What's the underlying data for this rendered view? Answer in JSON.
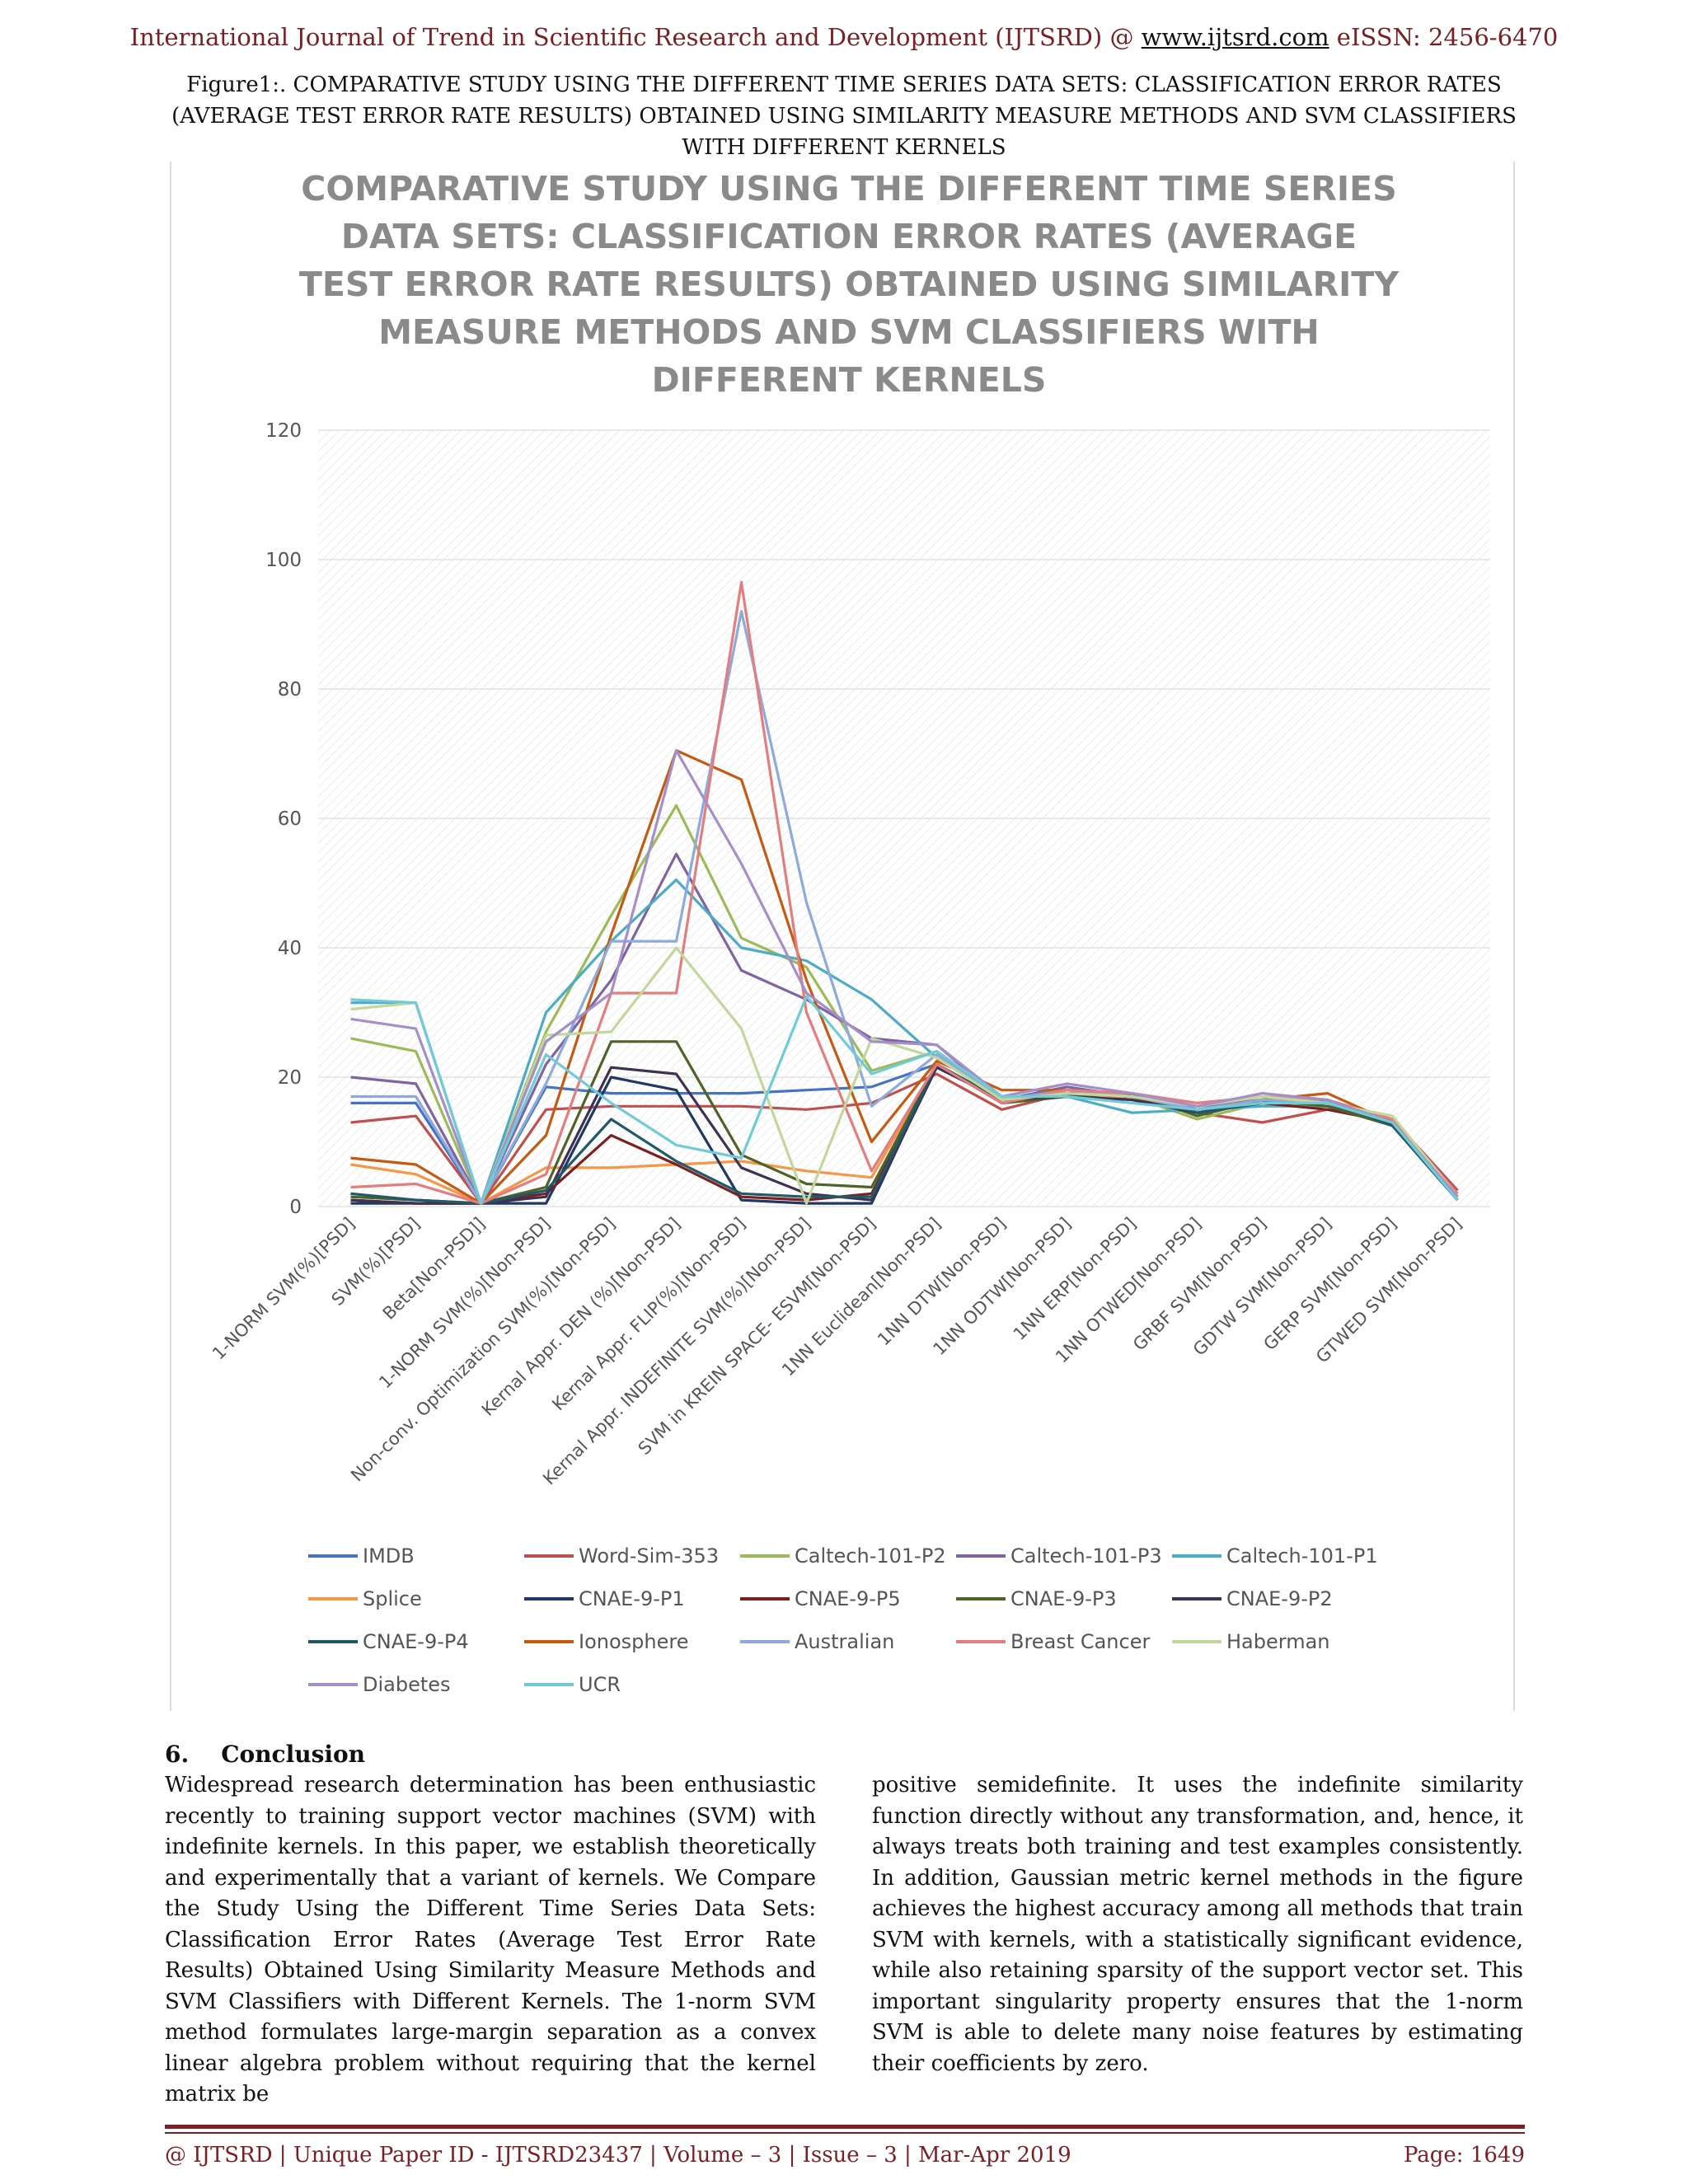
{
  "header": {
    "prefix": "International Journal of Trend in Scientific Research and Development (IJTSRD) @ ",
    "link": "www.ijtsrd.com",
    "suffix": " eISSN: 2456-6470"
  },
  "figure_caption": "Figure1:. COMPARATIVE STUDY USING THE DIFFERENT TIME SERIES DATA SETS: CLASSIFICATION ERROR RATES (AVERAGE TEST ERROR RATE RESULTS) OBTAINED USING SIMILARITY MEASURE METHODS AND SVM CLASSIFIERS WITH DIFFERENT KERNELS",
  "chart_data": {
    "type": "line",
    "title": "COMPARATIVE STUDY USING THE DIFFERENT TIME SERIES DATA SETS: CLASSIFICATION ERROR RATES (AVERAGE TEST ERROR RATE RESULTS) OBTAINED USING SIMILARITY MEASURE METHODS AND SVM CLASSIFIERS WITH DIFFERENT KERNELS",
    "ylim": [
      0,
      120
    ],
    "yticks": [
      0,
      20,
      40,
      60,
      80,
      100,
      120
    ],
    "grid": true,
    "legend_position": "bottom",
    "categories": [
      "1-NORM SVM(%)[PSD]",
      "SVM(%)[PSD]",
      "Beta[Non-PSD]]",
      "1-NORM SVM(%)[Non-PSD]",
      "Non-conv. Optimization SVM(%)[Non-PSD]",
      "Kernal Appr. DEN (%)[Non-PSD]",
      "Kernal Appr.  FLIP(%)[Non-PSD]",
      "Kernal Appr. INDEFINITE SVM(%)[Non-PSD]",
      "SVM in KREIN SPACE- ESVM[Non-PSD]",
      "1NN Euclidean[Non-PSD]",
      "1NN DTW[Non-PSD]",
      "1NN ODTW[Non-PSD]",
      "1NN ERP[Non-PSD]",
      "1NN OTWED[Non-PSD]",
      "GRBF SVM[Non-PSD]",
      "GDTW  SVM[Non-PSD]",
      "GERP  SVM[Non-PSD]",
      "GTWED SVM[Non-PSD]"
    ],
    "series": [
      {
        "name": "IMDB",
        "color": "#4472c4",
        "values": [
          16,
          16,
          0.5,
          18.5,
          17.5,
          17.5,
          17.5,
          18,
          18.5,
          22,
          16,
          17.5,
          17,
          15,
          16.5,
          15.5,
          13,
          1
        ]
      },
      {
        "name": "Word-Sim-353",
        "color": "#c0504d",
        "values": [
          13,
          14,
          0.5,
          15,
          15.5,
          15.5,
          15.5,
          15,
          16,
          20.5,
          15,
          17.5,
          16.5,
          14.5,
          13,
          15,
          13.5,
          2.5
        ]
      },
      {
        "name": "Caltech-101-P2",
        "color": "#9bbb59",
        "values": [
          26,
          24,
          0.5,
          27,
          45,
          62,
          41.5,
          37,
          21,
          24,
          16.5,
          17.5,
          17,
          13.5,
          16,
          15.5,
          13,
          1.5
        ]
      },
      {
        "name": "Caltech-101-P3",
        "color": "#8064a2",
        "values": [
          20,
          19,
          0.5,
          22,
          35,
          54.5,
          36.5,
          32,
          26,
          25,
          16.5,
          18.5,
          17,
          15.5,
          16.5,
          16,
          12.5,
          1.5
        ]
      },
      {
        "name": "Caltech-101-P1",
        "color": "#4bacc6",
        "values": [
          31.5,
          31.5,
          0.5,
          30,
          41,
          50.5,
          40,
          38,
          32,
          23,
          17,
          17,
          14.5,
          15,
          15.5,
          15.5,
          12.5,
          1
        ]
      },
      {
        "name": "Splice",
        "color": "#f79646",
        "values": [
          6.5,
          5,
          0.5,
          6,
          6,
          6.5,
          7,
          5.5,
          4.5,
          22,
          16,
          17,
          17,
          15,
          16.5,
          16,
          13,
          1.5
        ]
      },
      {
        "name": "CNAE-9-P1",
        "color": "#1f3864",
        "values": [
          0.5,
          0.5,
          0.5,
          0.5,
          20,
          18,
          1,
          0.5,
          0.5,
          22,
          16,
          17,
          17.5,
          15,
          16,
          16,
          12.5,
          1
        ]
      },
      {
        "name": "CNAE-9-P5",
        "color": "#7b1f1f",
        "values": [
          1,
          0.5,
          0.5,
          2,
          11,
          6.5,
          1.5,
          1,
          2,
          22,
          16,
          17.5,
          17,
          14.5,
          16,
          15,
          13,
          1.5
        ]
      },
      {
        "name": "CNAE-9-P3",
        "color": "#4f6228",
        "values": [
          1.5,
          1,
          0.5,
          3,
          25.5,
          25.5,
          8,
          3.5,
          3,
          22,
          16,
          17,
          17.5,
          14,
          16.5,
          15.5,
          12.5,
          1
        ]
      },
      {
        "name": "CNAE-9-P2",
        "color": "#3f3151",
        "values": [
          1,
          0.5,
          0.5,
          1.5,
          21.5,
          20.5,
          6,
          2,
          1,
          21.5,
          16.5,
          17,
          16.5,
          14.5,
          16,
          16,
          13,
          1
        ]
      },
      {
        "name": "CNAE-9-P4",
        "color": "#215967",
        "values": [
          2,
          1,
          0.5,
          2.5,
          13.5,
          7,
          2,
          1.5,
          1.5,
          22,
          16.5,
          17.5,
          17.5,
          14.5,
          16,
          16.5,
          12.5,
          1
        ]
      },
      {
        "name": "Ionosphere",
        "color": "#c55a11",
        "values": [
          7.5,
          6.5,
          0.5,
          11,
          42,
          70.5,
          66,
          35,
          10,
          22.5,
          18,
          18,
          17,
          15,
          16.5,
          17.5,
          13,
          2
        ]
      },
      {
        "name": "Australian",
        "color": "#8eaadb",
        "values": [
          17,
          17,
          0.5,
          19,
          41,
          41,
          92,
          47,
          15.5,
          23.5,
          16.5,
          18,
          17,
          15,
          16.5,
          16,
          13,
          1.5
        ]
      },
      {
        "name": "Breast Cancer",
        "color": "#e47d7d",
        "values": [
          3,
          3.5,
          0.5,
          5,
          33,
          33,
          96.5,
          30,
          5.5,
          22,
          16,
          18,
          17.5,
          16,
          17,
          16.5,
          13.5,
          2
        ]
      },
      {
        "name": "Haberman",
        "color": "#c3d69b",
        "values": [
          30.5,
          31.5,
          0.5,
          26.5,
          27,
          40,
          27.5,
          0.5,
          26,
          23,
          16.5,
          17.5,
          17,
          15.5,
          17,
          16,
          14,
          1.5
        ]
      },
      {
        "name": "Diabetes",
        "color": "#a48fc9",
        "values": [
          29,
          27.5,
          0.5,
          25.5,
          33,
          70.5,
          53,
          33,
          25.5,
          25,
          17,
          19,
          17.5,
          15.5,
          17.5,
          16.5,
          13,
          1.5
        ]
      },
      {
        "name": "UCR",
        "color": "#6fcbd8",
        "values": [
          32,
          31.5,
          0.5,
          23.5,
          16,
          9.5,
          7.5,
          32.5,
          20.5,
          24,
          17,
          17,
          16,
          15,
          16,
          16,
          13,
          1
        ]
      }
    ]
  },
  "section": {
    "number": "6.",
    "title": "Conclusion"
  },
  "paragraph_left": "Widespread research determination has been enthusiastic recently to training support vector machines (SVM) with indefinite kernels. In this paper, we establish theoretically and experimentally that a variant of kernels. We Compare the Study Using the Different Time Series Data Sets: Classification Error Rates (Average Test Error Rate Results) Obtained Using Similarity Measure Methods and SVM Classifiers with Different Kernels. The 1-norm SVM method formulates large-margin separation as a convex linear algebra problem without requiring that the kernel matrix be",
  "paragraph_right": "positive semidefinite. It uses the indefinite similarity function directly without any transformation, and, hence, it always treats both training and test examples consistently. In addition, Gaussian metric kernel methods in the figure achieves the highest accuracy among all methods that train SVM with kernels, with a statistically significant evidence, while also retaining sparsity of the support vector set. This important singularity property ensures that the 1-norm SVM is able to delete many noise features by estimating their coefficients by zero.",
  "footer": {
    "left": "@ IJTSRD | Unique Paper ID - IJTSRD23437  | Volume – 3 | Issue – 3 | Mar-Apr 2019",
    "right": "Page: 1649"
  }
}
